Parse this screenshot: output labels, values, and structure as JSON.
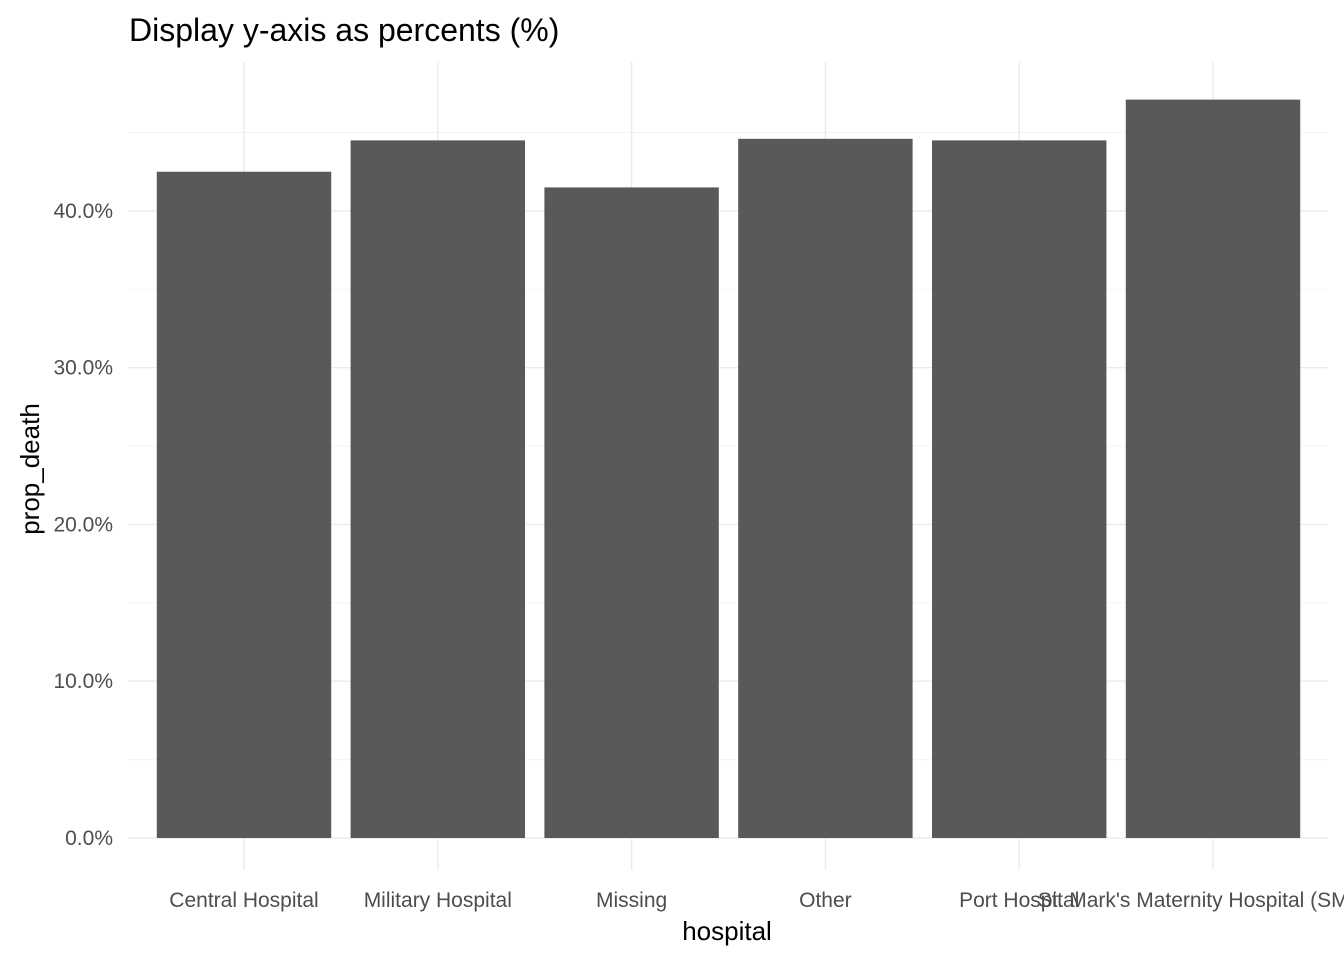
{
  "chart_data": {
    "type": "bar",
    "title": "Display y-axis as percents (%)",
    "xlabel": "hospital",
    "ylabel": "prop_death",
    "categories": [
      "Central Hospital",
      "Military Hospital",
      "Missing",
      "Other",
      "Port Hospital",
      "St. Mark's Maternity Hospital (SMMH)"
    ],
    "values": [
      0.425,
      0.445,
      0.415,
      0.446,
      0.445,
      0.471
    ],
    "ylim": [
      0,
      0.495
    ],
    "yticks": [
      0,
      0.1,
      0.2,
      0.3,
      0.4
    ],
    "ytick_labels": [
      "0.0%",
      "10.0%",
      "20.0%",
      "30.0%",
      "40.0%"
    ],
    "grid": true,
    "bar_color": "#595959",
    "grid_color": "#ebebeb"
  }
}
